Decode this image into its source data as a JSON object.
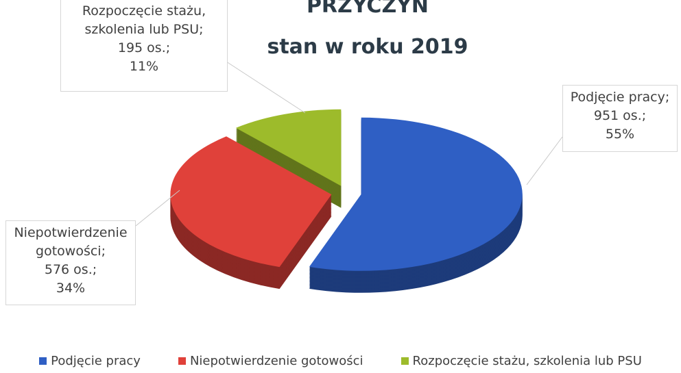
{
  "chart_data": {
    "type": "pie",
    "title": "PRZYCZYN",
    "subtitle": "stan w roku 2019",
    "categories": [
      "Podjęcie pracy",
      "Niepotwierdzenie gotowości",
      "Rozpoczęcie stażu, szkolenia lub PSU"
    ],
    "values": [
      951,
      576,
      195
    ],
    "value_labels": [
      "951 os.;",
      "576 os.;",
      "195 os.;"
    ],
    "percent_labels": [
      "55%",
      "34%",
      "11%"
    ],
    "callout_labels": [
      "Podjęcie pracy;",
      "Niepotwierdzenie gotowości;",
      "Rozpoczęcie stażu, szkolenia lub PSU;"
    ],
    "colors": [
      "#2f5fc4",
      "#e0413a",
      "#9dbb2b"
    ],
    "legend": "bottom"
  }
}
